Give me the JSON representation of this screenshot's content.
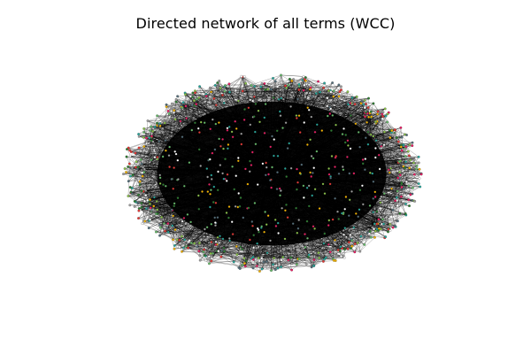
{
  "figure": {
    "title": "Directed network of all terms (WCC)"
  },
  "network": {
    "type": "directed-graph",
    "layout": "spring",
    "edge_color": "#000000",
    "node_colors": [
      "#2e7d32",
      "#66bb6a",
      "#8bc34a",
      "#f4b400",
      "#e53935",
      "#e91e63",
      "#546e7a",
      "#9e9e9e",
      "#ffffff",
      "#26a69a"
    ]
  }
}
